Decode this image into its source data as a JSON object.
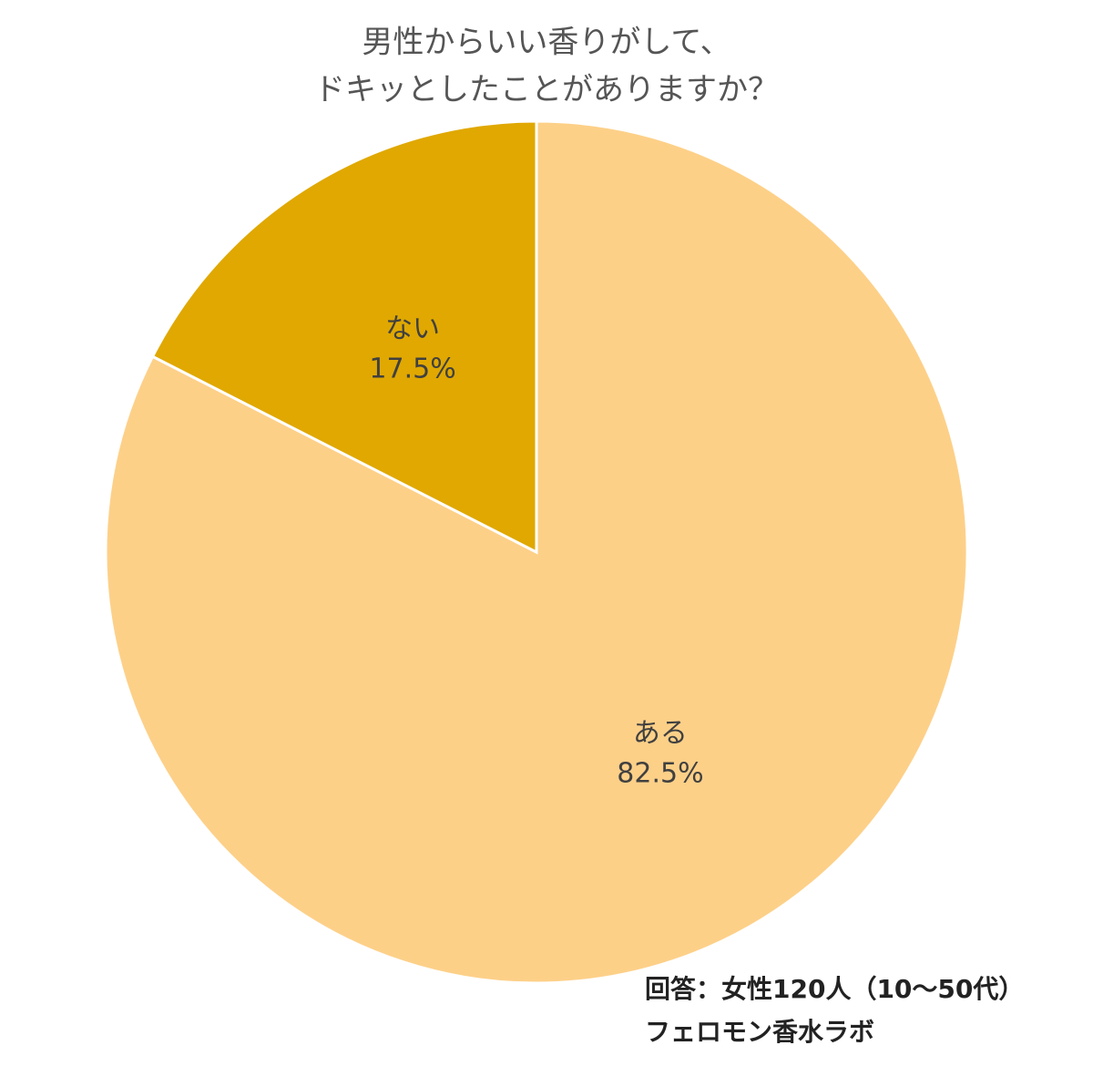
{
  "chart_data": {
    "type": "pie",
    "title": [
      "男性からいい香りがして、",
      "ドキッとしたことがありますか？"
    ],
    "categories": [
      "ある",
      "ない"
    ],
    "values": [
      82.5,
      17.5
    ],
    "value_labels": [
      "82.5%",
      "17.5%"
    ],
    "colors": [
      "#fdd088",
      "#e0a800"
    ],
    "notes": [
      "回答：女性120人（10～50代）",
      "フェロモン香水ラボ"
    ]
  }
}
